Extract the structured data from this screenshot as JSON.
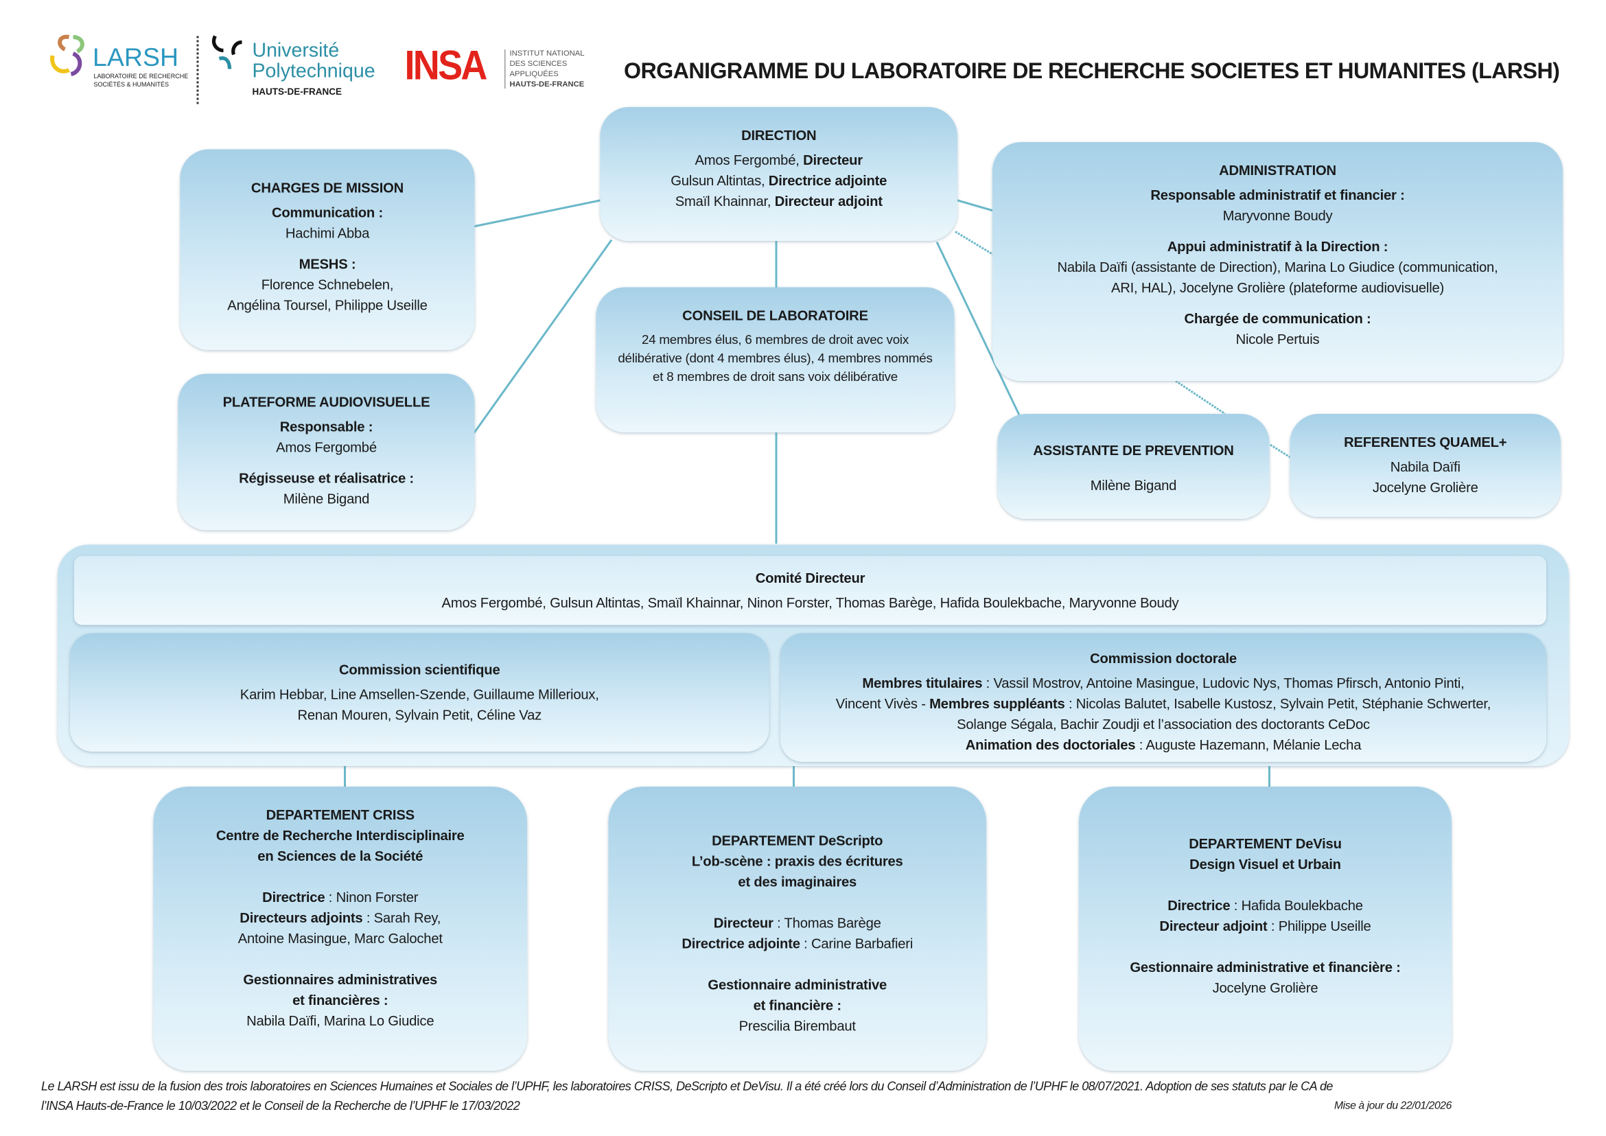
{
  "title": "ORGANIGRAMME DU LABORATOIRE DE RECHERCHE SOCIETES ET HUMANITES (LARSH)",
  "logos": {
    "larsh": {
      "name": "LARSH",
      "sub1": "LABORATOIRE DE RECHERCHE",
      "sub2": "SOCIÉTÉS & HUMANITÉS"
    },
    "uphf": {
      "l1": "Université",
      "l2": "Polytechnique",
      "l3": "HAUTS-DE-FRANCE"
    },
    "insa": {
      "name": "INSA",
      "l1": "INSTITUT NATIONAL",
      "l2": "DES SCIENCES",
      "l3": "APPLIQUÉES",
      "l4": "HAUTS-DE-FRANCE"
    }
  },
  "colors": {
    "connector": "#6bb8c9",
    "box_top": "#a6d0e7",
    "box_bottom": "#ecf7fc",
    "insa_red": "#e3231b",
    "larsh_teal": "#2a97c0",
    "uphf_teal": "#2b8fa5"
  },
  "boxes": [
    {
      "id": "direction",
      "title": "DIRECTION",
      "lines": [
        [
          {
            "t": "Amos Fergombé, "
          },
          {
            "t": "Directeur",
            "b": true
          }
        ],
        [
          {
            "t": "Gulsun Altintas, "
          },
          {
            "t": "Directrice adjointe",
            "b": true
          }
        ],
        [
          {
            "t": "Smaïl Khainnar, "
          },
          {
            "t": "Directeur adjoint",
            "b": true
          }
        ]
      ]
    },
    {
      "id": "charges",
      "title": "CHARGES DE MISSION",
      "lines": [
        [
          {
            "t": "Communication :",
            "b": true
          }
        ],
        [
          {
            "t": "Hachimi Abba"
          }
        ],
        "gap",
        [
          {
            "t": "MESHS :",
            "b": true
          }
        ],
        [
          {
            "t": "Florence Schnebelen,"
          }
        ],
        [
          {
            "t": "Angélina Toursel, Philippe Useille"
          }
        ]
      ]
    },
    {
      "id": "plateforme",
      "title": "PLATEFORME AUDIOVISUELLE",
      "lines": [
        [
          {
            "t": "Responsable :",
            "b": true
          }
        ],
        [
          {
            "t": "Amos Fergombé"
          }
        ],
        "gap",
        [
          {
            "t": "Régisseuse et réalisatrice :",
            "b": true
          }
        ],
        [
          {
            "t": "Milène Bigand"
          }
        ]
      ]
    },
    {
      "id": "conseil",
      "title": "CONSEIL DE LABORATOIRE",
      "body": "24 membres élus, 6 membres de droit avec voix délibérative (dont 4 membres élus), 4 membres nommés et 8 membres de droit sans voix délibérative"
    },
    {
      "id": "admin",
      "title": "ADMINISTRATION",
      "lines": [
        [
          {
            "t": "Responsable administratif et financier :",
            "b": true
          }
        ],
        [
          {
            "t": "Maryvonne Boudy"
          }
        ],
        "gap",
        [
          {
            "t": "Appui administratif à la Direction :",
            "b": true
          }
        ],
        [
          {
            "t": "Nabila Daïfi (assistante de Direction), Marina Lo Giudice (communication,"
          }
        ],
        [
          {
            "t": "ARI, HAL), Jocelyne Grolière (plateforme audiovisuelle)"
          }
        ],
        "gap",
        [
          {
            "t": "Chargée de communication :",
            "b": true
          }
        ],
        [
          {
            "t": "Nicole Pertuis"
          }
        ]
      ]
    },
    {
      "id": "assistante",
      "title": "ASSISTANTE DE PREVENTION",
      "lines": [
        "gap",
        [
          {
            "t": "Milène Bigand"
          }
        ]
      ]
    },
    {
      "id": "referentes",
      "title": "REFERENTES QUAMEL+",
      "lines": [
        [
          {
            "t": "Nabila Daïfi"
          }
        ],
        [
          {
            "t": "Jocelyne Grolière"
          }
        ]
      ]
    },
    {
      "id": "comite",
      "title": "Comité Directeur",
      "lines": [
        [
          {
            "t": "Amos Fergombé, Gulsun Altintas, Smaïl Khainnar, Ninon Forster, Thomas Barège, Hafida Boulekbache, Maryvonne Boudy"
          }
        ]
      ]
    },
    {
      "id": "cscient",
      "title": "Commission scientifique",
      "lines": [
        [
          {
            "t": "Karim Hebbar, Line Amsellen-Szende, Guillaume Millerioux,"
          }
        ],
        [
          {
            "t": "Renan Mouren, Sylvain Petit, Céline Vaz"
          }
        ]
      ]
    },
    {
      "id": "cdoc",
      "title": "Commission doctorale",
      "lines": [
        [
          {
            "t": "Membres titulaires",
            "b": true
          },
          {
            "t": " : Vassil Mostrov, Antoine Masingue, Ludovic Nys, Thomas Pfirsch, Antonio Pinti,"
          }
        ],
        [
          {
            "t": "Vincent Vivès - "
          },
          {
            "t": "Membres suppléants",
            "b": true
          },
          {
            "t": " : Nicolas Balutet, Isabelle Kustosz, Sylvain Petit, Stéphanie Schwerter,"
          }
        ],
        [
          {
            "t": "Solange Ségala, Bachir Zoudji et l’association des doctorants CeDoc"
          }
        ],
        [
          {
            "t": "Animation des doctoriales",
            "b": true
          },
          {
            "t": " : Auguste Hazemann, Mélanie Lecha"
          }
        ]
      ]
    },
    {
      "id": "criss",
      "dept": true,
      "title": "DEPARTEMENT CRISS",
      "lines": [
        [
          {
            "t": "Centre de Recherche Interdisciplinaire",
            "b": true
          }
        ],
        [
          {
            "t": "en Sciences de la Société",
            "b": true
          }
        ],
        "gap",
        "gap",
        [
          {
            "t": "Directrice",
            "b": true
          },
          {
            "t": " : Ninon Forster"
          }
        ],
        [
          {
            "t": "Directeurs adjoints",
            "b": true
          },
          {
            "t": " : Sarah Rey,"
          }
        ],
        [
          {
            "t": "Antoine Masingue, Marc Galochet"
          }
        ],
        "gap",
        "gap",
        [
          {
            "t": "Gestionnaires administratives",
            "b": true
          }
        ],
        [
          {
            "t": "et financières :",
            "b": true
          }
        ],
        [
          {
            "t": "Nabila Daïfi, Marina Lo Giudice"
          }
        ]
      ]
    },
    {
      "id": "descripto",
      "dept": true,
      "title": "DEPARTEMENT DeScripto",
      "lines": [
        [
          {
            "t": "L’ob-scène : praxis des écritures",
            "b": true
          }
        ],
        [
          {
            "t": "et des imaginaires",
            "b": true
          }
        ],
        "gap",
        "gap",
        [
          {
            "t": "Directeur",
            "b": true
          },
          {
            "t": " : Thomas Barège"
          }
        ],
        [
          {
            "t": "Directrice adjointe",
            "b": true
          },
          {
            "t": " : Carine Barbafieri"
          }
        ],
        "gap",
        "gap",
        [
          {
            "t": "Gestionnaire administrative",
            "b": true
          }
        ],
        [
          {
            "t": "et financière :",
            "b": true
          }
        ],
        [
          {
            "t": "Prescilia Birembaut"
          }
        ]
      ]
    },
    {
      "id": "devisu",
      "dept": true,
      "title": "DEPARTEMENT DeVisu",
      "lines": [
        [
          {
            "t": "Design Visuel et Urbain",
            "b": true
          }
        ],
        "gap",
        "gap",
        [
          {
            "t": "Directrice",
            "b": true
          },
          {
            "t": " : Hafida Boulekbache"
          }
        ],
        [
          {
            "t": "Directeur adjoint",
            "b": true
          },
          {
            "t": " : Philippe Useille"
          }
        ],
        "gap",
        "gap",
        [
          {
            "t": "Gestionnaire administrative et financière :",
            "b": true
          }
        ],
        [
          {
            "t": "Jocelyne Grolière"
          }
        ]
      ]
    }
  ],
  "footer": {
    "line1": "Le LARSH est issu de la fusion des trois laboratoires en Sciences Humaines et Sociales de l’UPHF, les laboratoires CRISS, DeScripto et DeVisu. Il a été créé lors du Conseil d’Administration de l’UPHF le 08/07/2021. Adoption de ses statuts par le CA de",
    "line2": "l’INSA Hauts-de-France le 10/03/2022 et le Conseil de la Recherche de l’UPHF le 17/03/2022",
    "updated": "Mise à jour du 22/01/2026"
  }
}
